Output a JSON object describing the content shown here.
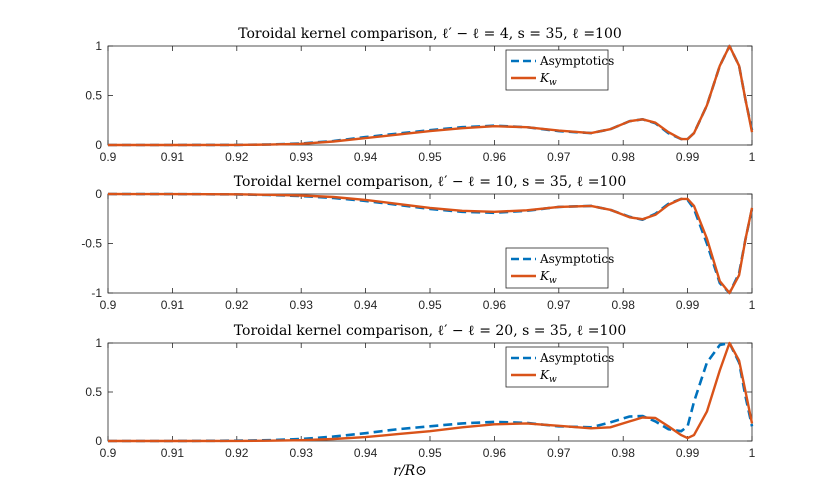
{
  "figure": {
    "xlabel": "r/R⊙",
    "colors": {
      "asymptotics": "#0072BD",
      "kw": "#D95319",
      "axis": "#262626"
    }
  },
  "chart_data": [
    {
      "type": "line",
      "title": "Toroidal kernel comparison, ℓ′ − ℓ = 4, s = 35, ℓ =100",
      "xlim": [
        0.9,
        1.0
      ],
      "ylim": [
        0,
        1
      ],
      "xticks": [
        "0.9",
        "0.91",
        "0.92",
        "0.93",
        "0.94",
        "0.95",
        "0.96",
        "0.97",
        "0.98",
        "0.99",
        "1"
      ],
      "yticks": [
        "0",
        "0.5",
        "1"
      ],
      "legend": "top-right",
      "series": [
        {
          "name": "Asymptotics",
          "style": "dashed",
          "x": [
            0.9,
            0.91,
            0.92,
            0.925,
            0.93,
            0.935,
            0.94,
            0.945,
            0.95,
            0.955,
            0.96,
            0.965,
            0.97,
            0.975,
            0.978,
            0.981,
            0.983,
            0.985,
            0.987,
            0.989,
            0.99,
            0.991,
            0.993,
            0.995,
            0.9965,
            0.998,
            0.999,
            1.0
          ],
          "y": [
            0,
            0,
            0.001,
            0.005,
            0.015,
            0.04,
            0.08,
            0.115,
            0.15,
            0.18,
            0.195,
            0.18,
            0.14,
            0.12,
            0.16,
            0.24,
            0.26,
            0.22,
            0.12,
            0.06,
            0.06,
            0.12,
            0.4,
            0.8,
            1.0,
            0.8,
            0.45,
            0.15
          ]
        },
        {
          "name": "K_w",
          "style": "solid",
          "x": [
            0.9,
            0.91,
            0.92,
            0.925,
            0.93,
            0.935,
            0.94,
            0.945,
            0.95,
            0.955,
            0.96,
            0.965,
            0.97,
            0.975,
            0.978,
            0.981,
            0.983,
            0.985,
            0.987,
            0.989,
            0.99,
            0.991,
            0.993,
            0.995,
            0.9965,
            0.998,
            0.999,
            1.0
          ],
          "y": [
            0,
            0,
            0.001,
            0.004,
            0.012,
            0.035,
            0.07,
            0.105,
            0.14,
            0.17,
            0.19,
            0.18,
            0.145,
            0.12,
            0.16,
            0.24,
            0.26,
            0.225,
            0.13,
            0.06,
            0.06,
            0.12,
            0.4,
            0.8,
            1.0,
            0.8,
            0.45,
            0.13
          ]
        }
      ]
    },
    {
      "type": "line",
      "title": "Toroidal kernel comparison, ℓ′ − ℓ = 10, s = 35, ℓ =100",
      "xlim": [
        0.9,
        1.0
      ],
      "ylim": [
        -1,
        0
      ],
      "xticks": [
        "0.9",
        "0.91",
        "0.92",
        "0.93",
        "0.94",
        "0.95",
        "0.96",
        "0.97",
        "0.98",
        "0.99",
        "1"
      ],
      "yticks": [
        "-1",
        "-0.5",
        "0"
      ],
      "legend": "bottom-right",
      "series": [
        {
          "name": "Asymptotics",
          "style": "dashed",
          "x": [
            0.9,
            0.91,
            0.92,
            0.925,
            0.93,
            0.935,
            0.94,
            0.945,
            0.95,
            0.955,
            0.96,
            0.965,
            0.97,
            0.975,
            0.978,
            0.981,
            0.983,
            0.985,
            0.987,
            0.989,
            0.99,
            0.991,
            0.993,
            0.995,
            0.9965,
            0.998,
            0.999,
            1.0
          ],
          "y": [
            0,
            -0.001,
            -0.004,
            -0.01,
            -0.02,
            -0.04,
            -0.07,
            -0.11,
            -0.15,
            -0.18,
            -0.19,
            -0.17,
            -0.13,
            -0.12,
            -0.16,
            -0.23,
            -0.26,
            -0.2,
            -0.1,
            -0.05,
            -0.06,
            -0.15,
            -0.5,
            -0.9,
            -1.0,
            -0.8,
            -0.45,
            -0.15
          ]
        },
        {
          "name": "K_w",
          "style": "solid",
          "x": [
            0.9,
            0.91,
            0.92,
            0.925,
            0.93,
            0.935,
            0.94,
            0.945,
            0.95,
            0.955,
            0.96,
            0.965,
            0.97,
            0.975,
            0.978,
            0.981,
            0.983,
            0.985,
            0.987,
            0.989,
            0.99,
            0.991,
            0.993,
            0.995,
            0.9965,
            0.998,
            0.999,
            1.0
          ],
          "y": [
            0,
            -0.001,
            -0.003,
            -0.008,
            -0.015,
            -0.03,
            -0.06,
            -0.1,
            -0.14,
            -0.17,
            -0.18,
            -0.165,
            -0.13,
            -0.12,
            -0.16,
            -0.235,
            -0.255,
            -0.21,
            -0.11,
            -0.05,
            -0.05,
            -0.12,
            -0.45,
            -0.88,
            -1.0,
            -0.82,
            -0.45,
            -0.14
          ]
        }
      ]
    },
    {
      "type": "line",
      "title": "Toroidal kernel comparison, ℓ′ − ℓ = 20, s = 35, ℓ =100",
      "xlim": [
        0.9,
        1.0
      ],
      "ylim": [
        0,
        1
      ],
      "xticks": [
        "0.9",
        "0.91",
        "0.92",
        "0.93",
        "0.94",
        "0.95",
        "0.96",
        "0.97",
        "0.98",
        "0.99",
        "1"
      ],
      "yticks": [
        "0",
        "0.5",
        "1"
      ],
      "legend": "top-right",
      "series": [
        {
          "name": "Asymptotics",
          "style": "dashed",
          "x": [
            0.9,
            0.91,
            0.92,
            0.925,
            0.93,
            0.935,
            0.94,
            0.945,
            0.95,
            0.955,
            0.96,
            0.965,
            0.97,
            0.975,
            0.978,
            0.981,
            0.983,
            0.985,
            0.987,
            0.989,
            0.99,
            0.991,
            0.993,
            0.995,
            0.9965,
            0.998,
            0.999,
            1.0
          ],
          "y": [
            0,
            0,
            0.003,
            0.008,
            0.02,
            0.045,
            0.08,
            0.12,
            0.15,
            0.18,
            0.195,
            0.185,
            0.15,
            0.14,
            0.19,
            0.25,
            0.255,
            0.2,
            0.12,
            0.1,
            0.15,
            0.4,
            0.8,
            0.98,
            1.0,
            0.8,
            0.45,
            0.15
          ]
        },
        {
          "name": "K_w",
          "style": "solid",
          "x": [
            0.9,
            0.91,
            0.92,
            0.925,
            0.93,
            0.935,
            0.94,
            0.945,
            0.95,
            0.955,
            0.96,
            0.965,
            0.97,
            0.975,
            0.978,
            0.981,
            0.983,
            0.985,
            0.987,
            0.989,
            0.99,
            0.991,
            0.993,
            0.995,
            0.9965,
            0.998,
            0.999,
            1.0
          ],
          "y": [
            0,
            0,
            0.001,
            0.003,
            0.008,
            0.02,
            0.04,
            0.07,
            0.1,
            0.14,
            0.17,
            0.18,
            0.155,
            0.13,
            0.14,
            0.2,
            0.24,
            0.235,
            0.15,
            0.06,
            0.03,
            0.06,
            0.3,
            0.72,
            1.0,
            0.82,
            0.5,
            0.18
          ]
        }
      ]
    }
  ]
}
